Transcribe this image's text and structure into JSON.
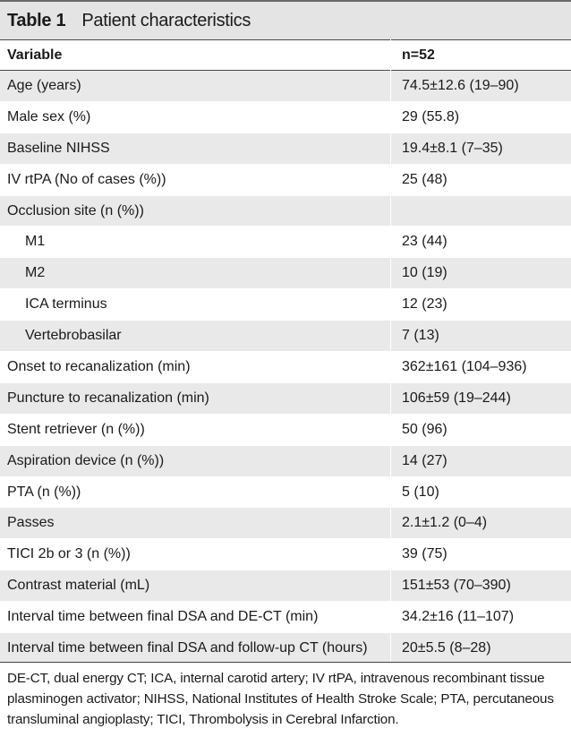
{
  "table": {
    "number": "Table 1",
    "title": "Patient characteristics",
    "header": {
      "variable": "Variable",
      "value": "n=52"
    },
    "rows": [
      {
        "label": "Age (years)",
        "value": "74.5±12.6 (19–90)",
        "indent": false
      },
      {
        "label": "Male sex (%)",
        "value": "29 (55.8)",
        "indent": false
      },
      {
        "label": "Baseline NIHSS",
        "value": "19.4±8.1 (7–35)",
        "indent": false
      },
      {
        "label": "IV rtPA (No of cases (%))",
        "value": "25 (48)",
        "indent": false
      },
      {
        "label": "Occlusion site (n (%))",
        "value": "",
        "indent": false
      },
      {
        "label": "M1",
        "value": "23 (44)",
        "indent": true
      },
      {
        "label": "M2",
        "value": "10 (19)",
        "indent": true
      },
      {
        "label": "ICA terminus",
        "value": "12 (23)",
        "indent": true
      },
      {
        "label": "Vertebrobasilar",
        "value": "7 (13)",
        "indent": true
      },
      {
        "label": "Onset to recanalization (min)",
        "value": "362±161 (104–936)",
        "indent": false
      },
      {
        "label": "Puncture to recanalization (min)",
        "value": "106±59 (19–244)",
        "indent": false
      },
      {
        "label": "Stent retriever (n (%))",
        "value": "50 (96)",
        "indent": false
      },
      {
        "label": "Aspiration device (n (%))",
        "value": "14 (27)",
        "indent": false
      },
      {
        "label": "PTA (n (%))",
        "value": "5 (10)",
        "indent": false
      },
      {
        "label": "Passes",
        "value": "2.1±1.2 (0–4)",
        "indent": false
      },
      {
        "label": "TICI 2b or 3 (n (%))",
        "value": "39 (75)",
        "indent": false
      },
      {
        "label": "Contrast material (mL)",
        "value": "151±53 (70–390)",
        "indent": false
      },
      {
        "label": "Interval time between final DSA and DE-CT (min)",
        "value": "34.2±16 (11–107)",
        "indent": false
      },
      {
        "label": "Interval time between final DSA and follow-up CT (hours)",
        "value": "20±5.5 (8–28)",
        "indent": false
      }
    ],
    "footnote": "DE-CT, dual energy CT; ICA, internal carotid artery; IV rtPA, intravenous recombinant tissue plasminogen activator; NIHSS, National Institutes of Health Stroke Scale; PTA, percutaneous transluminal angioplasty; TICI, Thrombolysis in Cerebral Infarction.",
    "colors": {
      "title_bg": "#e4e4e4",
      "row_shade": "#e9e9e9",
      "rule": "#4a4a4a"
    }
  }
}
